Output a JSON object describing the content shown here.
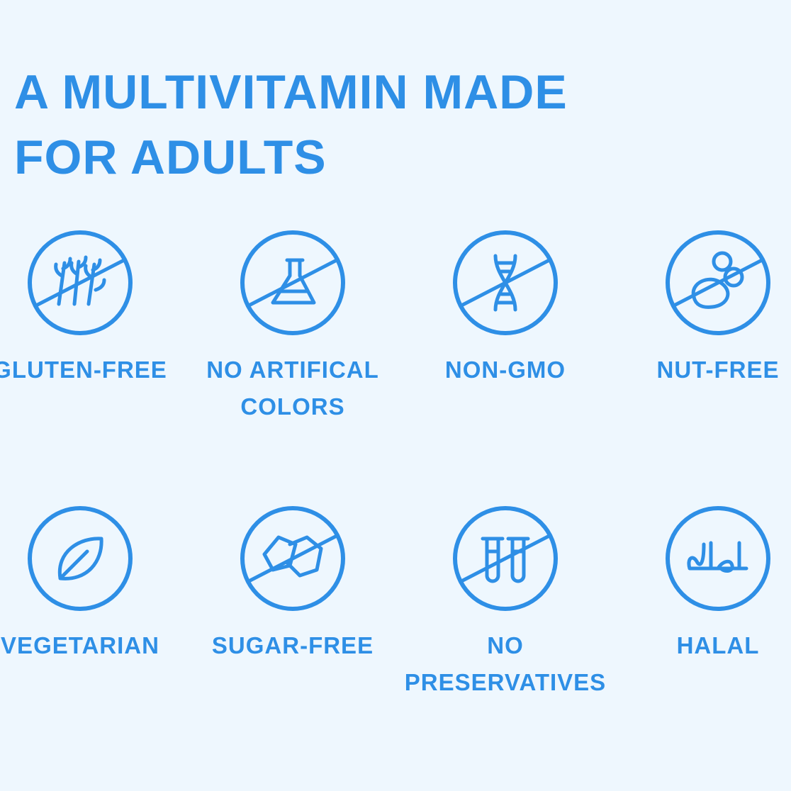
{
  "header": {
    "title_lines": [
      "A MULTIVITAMIN MADE",
      "FOR ADULTS"
    ]
  },
  "features": [
    {
      "label_lines": [
        "GLUTEN-FREE"
      ]
    },
    {
      "label_lines": [
        "NO ARTIFICAL",
        "COLORS"
      ]
    },
    {
      "label_lines": [
        "NON-GMO"
      ]
    },
    {
      "label_lines": [
        "NUT-FREE"
      ]
    },
    {
      "label_lines": [
        "VEGETARIAN"
      ]
    },
    {
      "label_lines": [
        "SUGAR-FREE"
      ]
    },
    {
      "label_lines": [
        "NO",
        "PRESERVATIVES"
      ]
    },
    {
      "label_lines": [
        "HALAL"
      ]
    }
  ]
}
